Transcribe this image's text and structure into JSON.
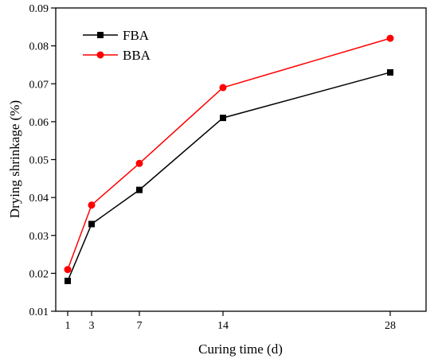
{
  "chart_data": {
    "type": "line",
    "title": "",
    "xlabel": "Curing time (d)",
    "ylabel": "Drying shrinkage (%)",
    "xlim": [
      0,
      31
    ],
    "ylim": [
      0.01,
      0.09
    ],
    "x_ticks": [
      1,
      3,
      7,
      14,
      28
    ],
    "y_ticks": [
      "0.01",
      "0.02",
      "0.03",
      "0.04",
      "0.05",
      "0.06",
      "0.07",
      "0.08",
      "0.09"
    ],
    "grid": false,
    "legend_position": "top-left",
    "x": [
      1,
      3,
      7,
      14,
      28
    ],
    "series": [
      {
        "name": "FBA",
        "values": [
          0.018,
          0.033,
          0.042,
          0.061,
          0.073
        ],
        "color": "#000000",
        "marker": "square"
      },
      {
        "name": "BBA",
        "values": [
          0.021,
          0.038,
          0.049,
          0.069,
          0.082
        ],
        "color": "#ff0000",
        "marker": "circle"
      }
    ]
  }
}
